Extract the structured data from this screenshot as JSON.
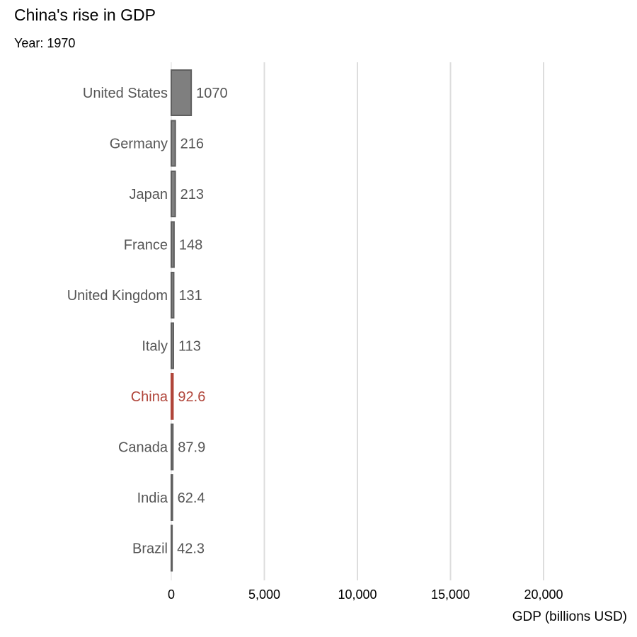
{
  "chart_data": {
    "type": "bar",
    "orientation": "horizontal",
    "title": "China's rise in GDP",
    "subtitle": "Year: 1970",
    "xlabel": "GDP (billions USD)",
    "ylabel": "",
    "xlim": [
      0,
      24500
    ],
    "xticks": [
      0,
      5000,
      10000,
      15000,
      20000
    ],
    "xtick_labels": [
      "0",
      "5,000",
      "10,000",
      "15,000",
      "20,000"
    ],
    "grid": "vertical",
    "categories": [
      "United States",
      "Germany",
      "Japan",
      "France",
      "United Kingdom",
      "Italy",
      "China",
      "Canada",
      "India",
      "Brazil"
    ],
    "values": [
      1070,
      216,
      213,
      148,
      131,
      113,
      92.6,
      87.9,
      62.4,
      42.3
    ],
    "value_labels": [
      "1070",
      "216",
      "213",
      "148",
      "131",
      "113",
      "92.6",
      "87.9",
      "62.4",
      "42.3"
    ],
    "highlight": "China",
    "colors": {
      "bar": "#7f7f7f",
      "bar_stroke": "#5f5f5f",
      "highlight": "#b0453a",
      "label": "#555555",
      "grid": "#dddddd"
    }
  }
}
